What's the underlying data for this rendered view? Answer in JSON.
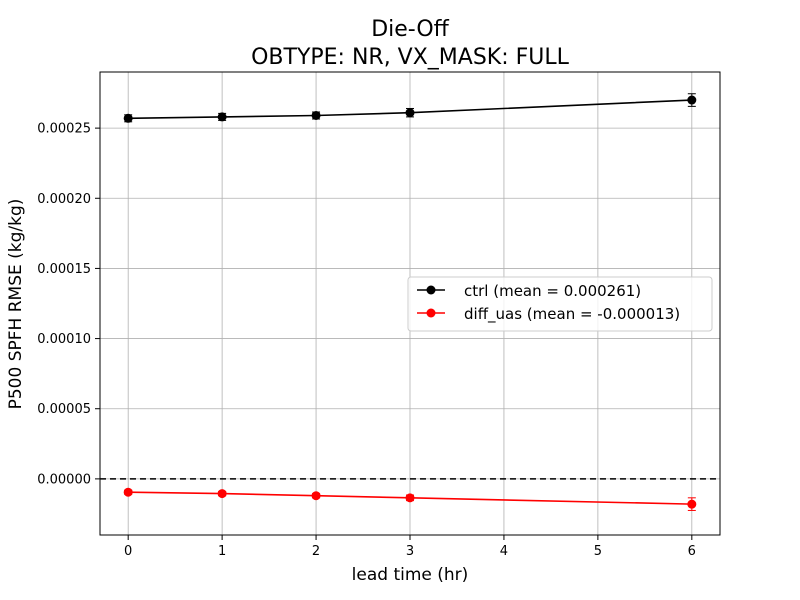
{
  "chart_data": {
    "type": "line",
    "title_line1": "Die-Off",
    "title_line2": "OBTYPE: NR,  VX_MASK: FULL",
    "xlabel": "lead time (hr)",
    "ylabel": "P500 SPFH RMSE (kg/kg)",
    "xlim": [
      -0.3,
      6.3
    ],
    "ylim": [
      -4e-05,
      0.00029
    ],
    "xticks": [
      0,
      1,
      2,
      3,
      4,
      5,
      6
    ],
    "xtick_labels": [
      "0",
      "1",
      "2",
      "3",
      "4",
      "5",
      "6"
    ],
    "yticks": [
      0,
      5e-05,
      0.0001,
      0.00015,
      0.0002,
      0.00025
    ],
    "ytick_labels": [
      "0.00000",
      "0.00005",
      "0.00010",
      "0.00015",
      "0.00020",
      "0.00025"
    ],
    "grid": true,
    "legend_position": "center-right",
    "reference_line": {
      "y": 0,
      "style": "dashed",
      "color": "#000000"
    },
    "series": [
      {
        "name": "ctrl (mean = 0.000261)",
        "color": "#000000",
        "x": [
          0,
          1,
          2,
          3,
          6
        ],
        "y": [
          0.000257,
          0.000258,
          0.000259,
          0.000261,
          0.00027
        ],
        "err": [
          2.5e-06,
          2.5e-06,
          2.5e-06,
          3e-06,
          4.5e-06
        ]
      },
      {
        "name": "diff_uas (mean = -0.000013)",
        "color": "#ff0000",
        "x": [
          0,
          1,
          2,
          3,
          6
        ],
        "y": [
          -9.5e-06,
          -1.05e-05,
          -1.2e-05,
          -1.35e-05,
          -1.8e-05
        ],
        "err": [
          1.5e-06,
          1.5e-06,
          1.5e-06,
          2e-06,
          4.5e-06
        ]
      }
    ]
  }
}
